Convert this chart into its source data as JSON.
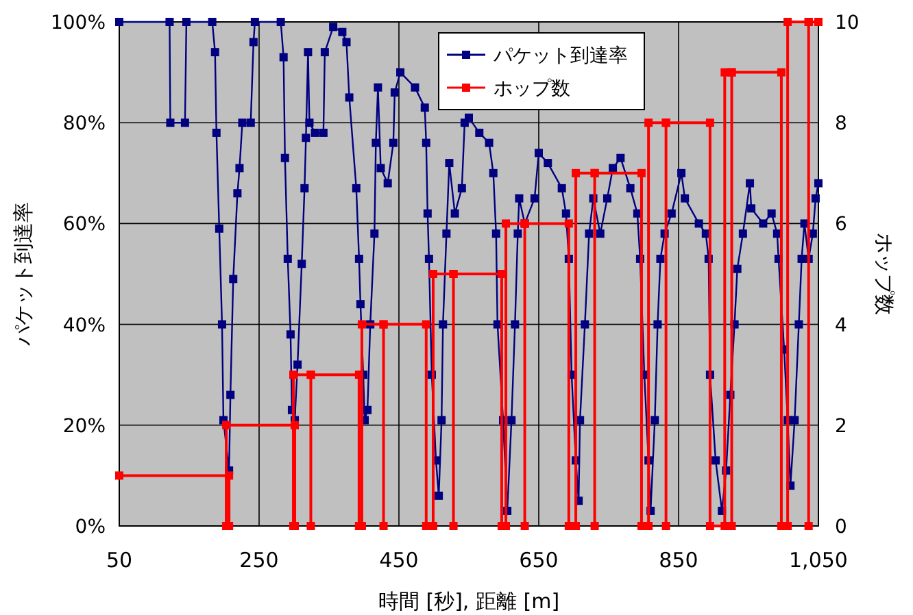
{
  "chart_data": {
    "type": "line",
    "xlabel": "時間 [秒], 距離 [m]",
    "ylabel": "パケット到達率",
    "y2label": "ホップ数",
    "xlim": [
      50,
      1050
    ],
    "xticks": [
      50,
      250,
      450,
      650,
      850,
      {
        "value": 1050,
        "label": "1,050"
      }
    ],
    "ylim": [
      0,
      100
    ],
    "yticks": [
      {
        "value": 0,
        "label": "0%"
      },
      {
        "value": 20,
        "label": "20%"
      },
      {
        "value": 40,
        "label": "40%"
      },
      {
        "value": 60,
        "label": "60%"
      },
      {
        "value": 80,
        "label": "80%"
      },
      {
        "value": 100,
        "label": "100%"
      }
    ],
    "y2lim": [
      0,
      10
    ],
    "y2ticks": [
      0,
      2,
      4,
      6,
      8,
      10
    ],
    "grid": true,
    "legend": "top",
    "marker": "square",
    "line_style": "solid",
    "series": [
      {
        "name": "パケット到達率",
        "color": "#000080",
        "x": [
          50,
          122,
          123,
          144,
          146,
          183,
          187,
          189,
          193,
          197,
          199,
          207,
          209,
          213,
          219,
          222,
          226,
          238,
          242,
          244,
          281,
          285,
          287,
          291,
          295,
          297,
          301,
          305,
          311,
          315,
          317,
          320,
          322,
          330,
          342,
          344,
          356,
          369,
          375,
          379,
          389,
          393,
          395,
          399,
          401,
          405,
          409,
          415,
          417,
          420,
          424,
          434,
          442,
          444,
          452,
          473,
          487,
          489,
          491,
          493,
          497,
          503,
          507,
          511,
          513,
          518,
          522,
          530,
          540,
          544,
          550,
          565,
          579,
          585,
          589,
          591,
          599,
          605,
          611,
          616,
          620,
          622,
          630,
          644,
          650,
          663,
          683,
          689,
          693,
          697,
          703,
          707,
          709,
          716,
          722,
          728,
          738,
          748,
          756,
          767,
          781,
          791,
          795,
          801,
          807,
          810,
          816,
          820,
          824,
          830,
          840,
          854,
          859,
          879,
          889,
          893,
          895,
          903,
          912,
          918,
          924,
          930,
          934,
          942,
          952,
          954,
          971,
          983,
          991,
          993,
          1001,
          1006,
          1010,
          1016,
          1022,
          1026,
          1030,
          1036,
          1042,
          1046,
          1050
        ],
        "values": [
          100,
          100,
          80,
          80,
          100,
          100,
          94,
          78,
          59,
          40,
          21,
          11,
          26,
          49,
          66,
          71,
          80,
          80,
          96,
          100,
          100,
          93,
          73,
          53,
          38,
          23,
          21,
          32,
          52,
          67,
          77,
          94,
          80,
          78,
          78,
          94,
          99,
          98,
          96,
          85,
          67,
          53,
          44,
          30,
          21,
          23,
          40,
          58,
          76,
          87,
          71,
          68,
          76,
          86,
          90,
          87,
          83,
          76,
          62,
          53,
          30,
          13,
          6,
          21,
          40,
          58,
          72,
          62,
          67,
          80,
          81,
          78,
          76,
          70,
          58,
          40,
          21,
          3,
          21,
          40,
          58,
          65,
          60,
          65,
          74,
          72,
          67,
          62,
          53,
          30,
          13,
          5,
          21,
          40,
          58,
          65,
          58,
          65,
          71,
          73,
          67,
          62,
          53,
          30,
          13,
          3,
          21,
          40,
          53,
          58,
          62,
          70,
          65,
          60,
          58,
          53,
          30,
          13,
          3,
          11,
          26,
          40,
          51,
          58,
          68,
          63,
          60,
          62,
          58,
          53,
          35,
          21,
          8,
          21,
          40,
          53,
          60,
          53,
          58,
          65,
          68
        ]
      },
      {
        "name": "ホップ数",
        "color": "#ff0000",
        "axis": "y2",
        "x": [
          50,
          207,
          207,
          203,
          203,
          301,
          301,
          299,
          299,
          324,
          324,
          324,
          393,
          393,
          397,
          397,
          428,
          428,
          428,
          489,
          489,
          499,
          499,
          528,
          528,
          528,
          597,
          597,
          603,
          603,
          630,
          630,
          630,
          693,
          693,
          703,
          703,
          730,
          730,
          730,
          797,
          797,
          807,
          807,
          832,
          832,
          832,
          895,
          895,
          916,
          916,
          926,
          926,
          926,
          997,
          997,
          1006,
          1006,
          1036,
          1036,
          1036,
          1050
        ],
        "values": [
          1,
          1,
          0,
          0,
          2,
          2,
          0,
          0,
          3,
          3,
          0,
          3,
          3,
          0,
          0,
          4,
          4,
          0,
          4,
          4,
          0,
          0,
          5,
          5,
          0,
          5,
          5,
          0,
          0,
          6,
          6,
          0,
          6,
          6,
          0,
          0,
          7,
          7,
          0,
          7,
          7,
          0,
          0,
          8,
          8,
          0,
          8,
          8,
          0,
          0,
          9,
          9,
          0,
          9,
          9,
          0,
          0,
          10,
          10,
          0,
          10,
          10
        ]
      }
    ]
  }
}
